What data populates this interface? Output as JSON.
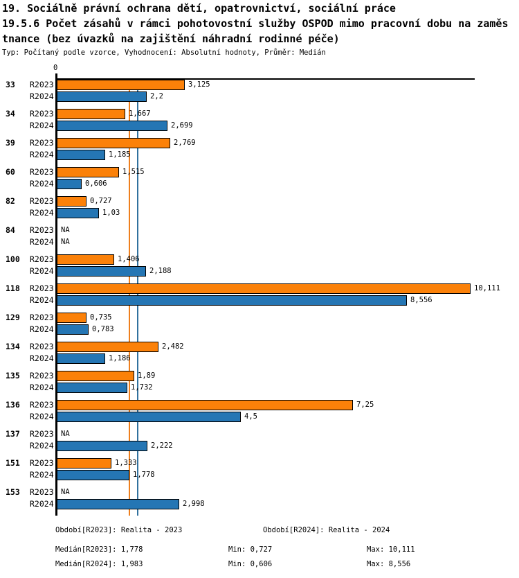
{
  "header": {
    "title_line1": "19. Sociálně právní ochrana dětí, opatrovnictví, sociální práce",
    "title_line2": "19.5.6 Počet zásahů v rámci pohotovostní služby OSPOD mimo pracovní dobu na zaměs",
    "title_line3": "tnance (bez úvazků na zajištění náhradní rodinné péče)",
    "subtitle": "Typ: Počítaný podle vzorce, Vyhodnocení: Absolutní hodnoty, Průměr: Medián"
  },
  "chart_data": {
    "type": "bar",
    "orientation": "horizontal",
    "title": "19.5.6 Počet zásahů v rámci pohotovostní služby OSPOD mimo pracovní dobu na zaměstnance (bez úvazků na zajištění náhradní rodinné péče)",
    "x_origin_label": "0",
    "xlim": [
      0,
      10.25
    ],
    "grid": false,
    "na_label": "NA",
    "categories": [
      "33",
      "34",
      "39",
      "60",
      "82",
      "84",
      "100",
      "118",
      "129",
      "134",
      "135",
      "136",
      "137",
      "151",
      "153"
    ],
    "series": [
      {
        "name": "R2023",
        "color": "#FB8109",
        "values": [
          3.125,
          1.667,
          2.769,
          1.515,
          0.727,
          null,
          1.406,
          10.111,
          0.735,
          2.482,
          1.89,
          7.25,
          null,
          1.333,
          null
        ],
        "value_labels": [
          "3,125",
          "1,667",
          "2,769",
          "1,515",
          "0,727",
          "NA",
          "1,406",
          "10,111",
          "0,735",
          "2,482",
          "1,89",
          "7,25",
          "NA",
          "1,333",
          "NA"
        ]
      },
      {
        "name": "R2024",
        "color": "#2576B4",
        "values": [
          2.2,
          2.699,
          1.185,
          0.606,
          1.03,
          null,
          2.188,
          8.556,
          0.783,
          1.186,
          1.732,
          4.5,
          2.222,
          1.778,
          2.998
        ],
        "value_labels": [
          "2,2",
          "2,699",
          "1,185",
          "0,606",
          "1,03",
          "NA",
          "2,188",
          "8,556",
          "0,783",
          "1,186",
          "1,732",
          "4,5",
          "2,222",
          "1,778",
          "2,998"
        ]
      }
    ],
    "reference_lines": [
      {
        "name": "Medián[R2023]",
        "value": 1.778,
        "color": "#EE7F1D"
      },
      {
        "name": "Medián[R2024]",
        "value": 1.983,
        "color": "#31719E"
      }
    ]
  },
  "legend": {
    "period_r2023": "Období[R2023]: Realita - 2023",
    "period_r2024": "Období[R2024]: Realita - 2024",
    "stats": [
      {
        "median": "Medián[R2023]: 1,778",
        "min": "Min: 0,727",
        "max": "Max: 10,111"
      },
      {
        "median": "Medián[R2024]: 1,983",
        "min": "Min: 0,606",
        "max": "Max: 8,556"
      }
    ]
  }
}
